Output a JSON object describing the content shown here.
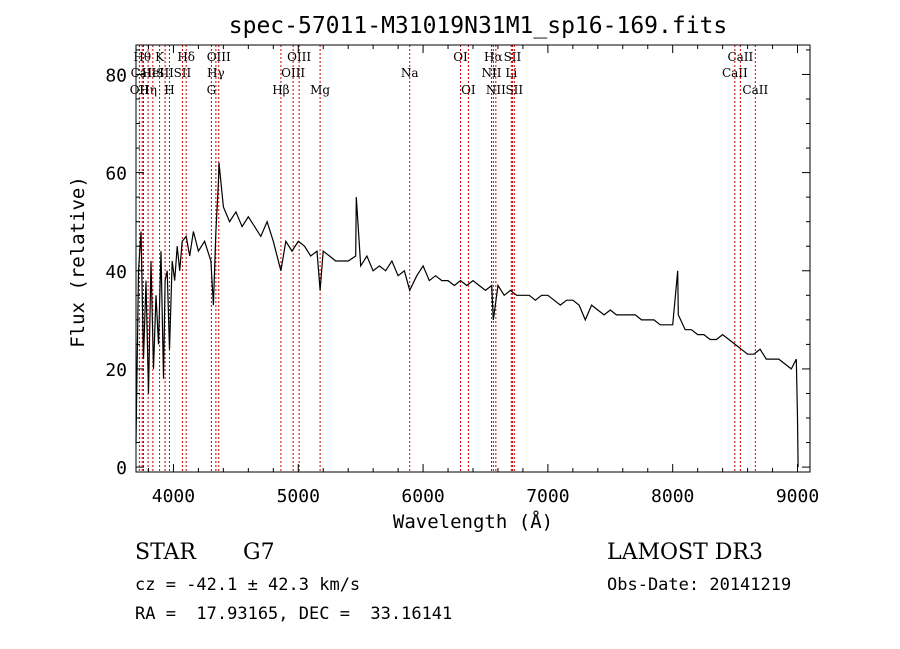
{
  "colors": {
    "axis": "#000000",
    "spectrum": "#000000",
    "marker": "#cc0000"
  },
  "chart_data": {
    "type": "line",
    "title": "spec-57011-M31019N31M1_sp16-169.fits",
    "xlabel": "Wavelength (Å)",
    "ylabel": "Flux (relative)",
    "xlim": [
      3700,
      9100
    ],
    "ylim": [
      -1,
      86
    ],
    "xticks": [
      4000,
      5000,
      6000,
      7000,
      8000,
      9000
    ],
    "yticks": [
      0,
      20,
      40,
      60,
      80
    ],
    "grid": false,
    "series": [
      {
        "name": "spectrum",
        "x": [
          3700,
          3720,
          3740,
          3760,
          3780,
          3800,
          3820,
          3840,
          3860,
          3880,
          3900,
          3920,
          3933,
          3950,
          3968,
          3990,
          4010,
          4030,
          4050,
          4070,
          4102,
          4130,
          4160,
          4200,
          4250,
          4300,
          4320,
          4340,
          4360,
          4365,
          4400,
          4450,
          4500,
          4550,
          4600,
          4650,
          4700,
          4750,
          4800,
          4861,
          4900,
          4950,
          5000,
          5050,
          5100,
          5150,
          5175,
          5200,
          5250,
          5300,
          5350,
          5400,
          5460,
          5465,
          5500,
          5550,
          5600,
          5650,
          5700,
          5750,
          5800,
          5850,
          5893,
          5950,
          6000,
          6050,
          6100,
          6150,
          6200,
          6250,
          6300,
          6350,
          6400,
          6450,
          6500,
          6550,
          6563,
          6600,
          6650,
          6700,
          6750,
          6800,
          6850,
          6900,
          6950,
          7000,
          7050,
          7100,
          7150,
          7200,
          7250,
          7300,
          7350,
          7400,
          7450,
          7500,
          7550,
          7600,
          7650,
          7700,
          7750,
          7800,
          7850,
          7900,
          7950,
          8000,
          8040,
          8045,
          8100,
          8150,
          8200,
          8250,
          8300,
          8350,
          8400,
          8450,
          8500,
          8550,
          8600,
          8650,
          8700,
          8750,
          8800,
          8850,
          8900,
          8950,
          8990,
          9000,
          9005
        ],
        "y": [
          5,
          40,
          48,
          22,
          38,
          15,
          42,
          20,
          35,
          25,
          44,
          18,
          38,
          40,
          24,
          42,
          38,
          45,
          40,
          46,
          47,
          43,
          48,
          44,
          46,
          42,
          33,
          48,
          58,
          62,
          53,
          50,
          52,
          49,
          51,
          49,
          47,
          50,
          46,
          40,
          46,
          44,
          46,
          45,
          43,
          44,
          36,
          44,
          43,
          42,
          42,
          42,
          43,
          55,
          41,
          43,
          40,
          41,
          40,
          42,
          39,
          40,
          36,
          39,
          41,
          38,
          39,
          38,
          38,
          37,
          38,
          37,
          38,
          37,
          36,
          37,
          30,
          37,
          35,
          36,
          35,
          35,
          35,
          34,
          35,
          35,
          34,
          33,
          34,
          34,
          33,
          30,
          33,
          32,
          31,
          32,
          31,
          31,
          31,
          31,
          30,
          30,
          30,
          29,
          29,
          29,
          40,
          31,
          28,
          28,
          27,
          27,
          26,
          26,
          27,
          26,
          25,
          24,
          23,
          23,
          24,
          22,
          22,
          22,
          21,
          20,
          22,
          10,
          0
        ]
      }
    ],
    "line_markers": [
      {
        "wave": 3727,
        "label": "OII",
        "row": 3
      },
      {
        "wave": 3750,
        "label": "Hθ",
        "row": 1
      },
      {
        "wave": 3760,
        "label": "CaII",
        "row": 2
      },
      {
        "wave": 3797,
        "label": "Hη",
        "row": 3
      },
      {
        "wave": 3835,
        "label": "HeI",
        "row": 2
      },
      {
        "wave": 3889,
        "label": "K",
        "row": 1
      },
      {
        "wave": 3933,
        "label": "SII",
        "row": 2
      },
      {
        "wave": 3968,
        "label": "H",
        "row": 3
      },
      {
        "wave": 4072,
        "label": "SII",
        "row": 2
      },
      {
        "wave": 4102,
        "label": "Hδ",
        "row": 1
      },
      {
        "wave": 4304,
        "label": "G",
        "row": 3
      },
      {
        "wave": 4340,
        "label": "Hγ",
        "row": 2
      },
      {
        "wave": 4363,
        "label": "OIII",
        "row": 1
      },
      {
        "wave": 4861,
        "label": "Hβ",
        "row": 3
      },
      {
        "wave": 4959,
        "label": "OIII",
        "row": 2
      },
      {
        "wave": 5007,
        "label": "OIII",
        "row": 1
      },
      {
        "wave": 5175,
        "label": "Mg",
        "row": 3
      },
      {
        "wave": 5893,
        "label": "Na",
        "row": 2
      },
      {
        "wave": 6300,
        "label": "OI",
        "row": 1
      },
      {
        "wave": 6363,
        "label": "OI",
        "row": 3
      },
      {
        "wave": 6548,
        "label": "NII",
        "row": 2
      },
      {
        "wave": 6563,
        "label": "Hα",
        "row": 1
      },
      {
        "wave": 6583,
        "label": "NII",
        "row": 3
      },
      {
        "wave": 6707,
        "label": "Li",
        "row": 2
      },
      {
        "wave": 6716,
        "label": "SII",
        "row": 1
      },
      {
        "wave": 6731,
        "label": "SII",
        "row": 3
      },
      {
        "wave": 8498,
        "label": "CaII",
        "row": 2
      },
      {
        "wave": 8542,
        "label": "CaII",
        "row": 1
      },
      {
        "wave": 8662,
        "label": "CaII",
        "row": 3
      }
    ]
  },
  "footer": {
    "object_class": "STAR",
    "subclass": "G7",
    "survey": "LAMOST DR3",
    "redshift": "cz = -42.1 ± 42.3 km/s",
    "obs_date": "Obs-Date: 20141219",
    "coords": "RA =  17.93165, DEC =  33.16141"
  }
}
